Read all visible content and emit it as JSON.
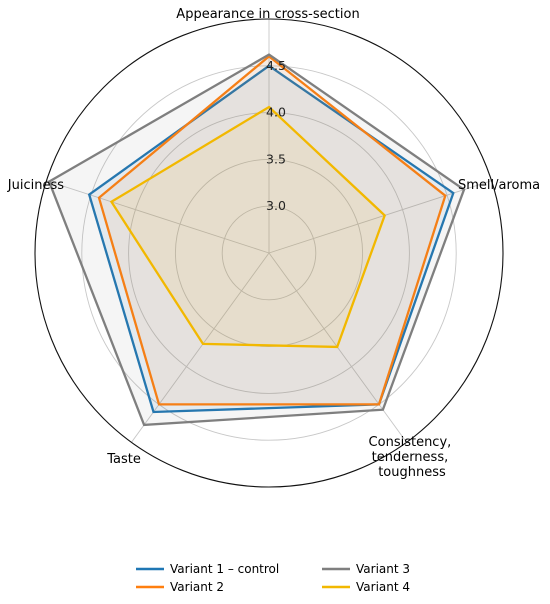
{
  "chart_data": {
    "type": "radar",
    "axes": [
      "Appearance in cross-section",
      "Smell/aroma",
      "Consistency, tenderness, toughness",
      "Taste",
      "Juiciness"
    ],
    "r_ticks": [
      "3.0",
      "3.5",
      "4.0",
      "4.5"
    ],
    "r_range": [
      2.5,
      5.0
    ],
    "grid": true,
    "legend_position": "bottom",
    "series": [
      {
        "name": "Variant 1 – control",
        "color": "#1f77b4",
        "values": [
          4.5,
          4.57,
          4.5,
          4.6,
          4.52
        ]
      },
      {
        "name": "Variant 2",
        "color": "#ff7f0e",
        "values": [
          4.6,
          4.48,
          4.5,
          4.5,
          4.41
        ]
      },
      {
        "name": "Variant 3",
        "color": "#7f7f7f",
        "values": [
          4.62,
          4.69,
          4.57,
          4.77,
          4.97
        ]
      },
      {
        "name": "Variant 4",
        "color": "#f2b800",
        "values": [
          4.06,
          3.8,
          3.74,
          3.7,
          4.27
        ]
      }
    ]
  }
}
